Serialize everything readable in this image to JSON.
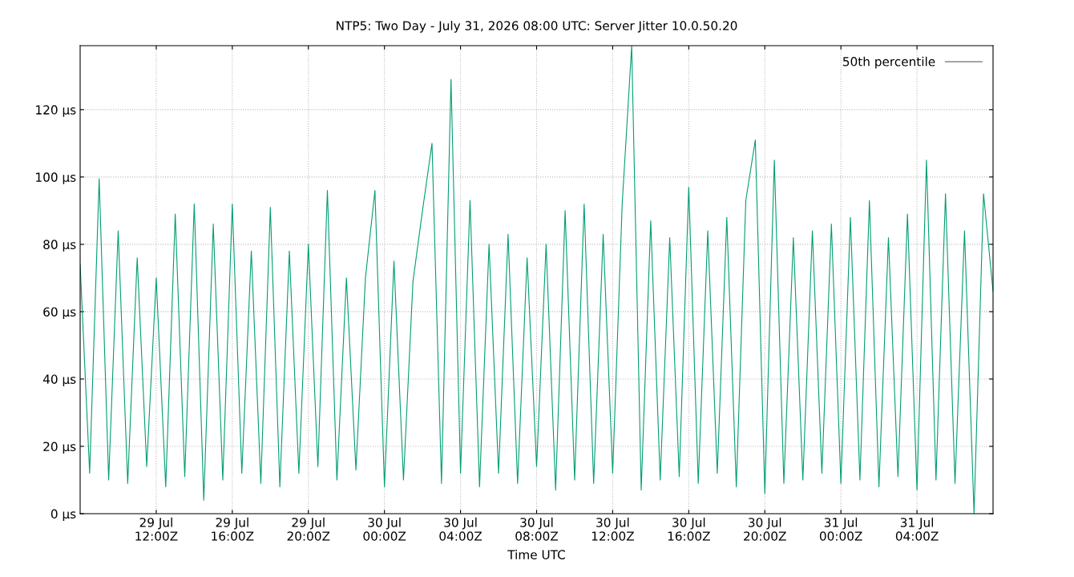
{
  "chart_data": {
    "type": "line",
    "title": "NTP5: Two Day - July 31, 2026 08:00 UTC: Server Jitter 10.0.50.20",
    "xlabel": "Time UTC",
    "x": [
      "2026-07-29T08:00",
      "2026-07-29T08:30",
      "2026-07-29T09:00",
      "2026-07-29T09:30",
      "2026-07-29T10:00",
      "2026-07-29T10:30",
      "2026-07-29T11:00",
      "2026-07-29T11:30",
      "2026-07-29T12:00",
      "2026-07-29T12:30",
      "2026-07-29T13:00",
      "2026-07-29T13:30",
      "2026-07-29T14:00",
      "2026-07-29T14:30",
      "2026-07-29T15:00",
      "2026-07-29T15:30",
      "2026-07-29T16:00",
      "2026-07-29T16:30",
      "2026-07-29T17:00",
      "2026-07-29T17:30",
      "2026-07-29T18:00",
      "2026-07-29T18:30",
      "2026-07-29T19:00",
      "2026-07-29T19:30",
      "2026-07-29T20:00",
      "2026-07-29T20:30",
      "2026-07-29T21:00",
      "2026-07-29T21:30",
      "2026-07-29T22:00",
      "2026-07-29T22:30",
      "2026-07-29T23:00",
      "2026-07-29T23:30",
      "2026-07-30T00:00",
      "2026-07-30T00:30",
      "2026-07-30T01:00",
      "2026-07-30T01:30",
      "2026-07-30T02:00",
      "2026-07-30T02:30",
      "2026-07-30T03:00",
      "2026-07-30T03:30",
      "2026-07-30T04:00",
      "2026-07-30T04:30",
      "2026-07-30T05:00",
      "2026-07-30T05:30",
      "2026-07-30T06:00",
      "2026-07-30T06:30",
      "2026-07-30T07:00",
      "2026-07-30T07:30",
      "2026-07-30T08:00",
      "2026-07-30T08:30",
      "2026-07-30T09:00",
      "2026-07-30T09:30",
      "2026-07-30T10:00",
      "2026-07-30T10:30",
      "2026-07-30T11:00",
      "2026-07-30T11:30",
      "2026-07-30T12:00",
      "2026-07-30T12:30",
      "2026-07-30T13:00",
      "2026-07-30T13:30",
      "2026-07-30T14:00",
      "2026-07-30T14:30",
      "2026-07-30T15:00",
      "2026-07-30T15:30",
      "2026-07-30T16:00",
      "2026-07-30T16:30",
      "2026-07-30T17:00",
      "2026-07-30T17:30",
      "2026-07-30T18:00",
      "2026-07-30T18:30",
      "2026-07-30T19:00",
      "2026-07-30T19:30",
      "2026-07-30T20:00",
      "2026-07-30T20:30",
      "2026-07-30T21:00",
      "2026-07-30T21:30",
      "2026-07-30T22:00",
      "2026-07-30T22:30",
      "2026-07-30T23:00",
      "2026-07-30T23:30",
      "2026-07-31T00:00",
      "2026-07-31T00:30",
      "2026-07-31T01:00",
      "2026-07-31T01:30",
      "2026-07-31T02:00",
      "2026-07-31T02:30",
      "2026-07-31T03:00",
      "2026-07-31T03:30",
      "2026-07-31T04:00",
      "2026-07-31T04:30",
      "2026-07-31T05:00",
      "2026-07-31T05:30",
      "2026-07-31T06:00",
      "2026-07-31T06:30",
      "2026-07-31T07:00",
      "2026-07-31T07:30",
      "2026-07-31T08:00"
    ],
    "series": [
      {
        "name": "50th percentile",
        "color": "#4d4d4d",
        "values": [
          null,
          null,
          null,
          null,
          null,
          null,
          null,
          null,
          null,
          null,
          null,
          null,
          null,
          null,
          null,
          null,
          null,
          null,
          null,
          null,
          null,
          null,
          null,
          null,
          null,
          null,
          null,
          null,
          null,
          null,
          null,
          null,
          null,
          null,
          null,
          null,
          null,
          null,
          null,
          null,
          null,
          null,
          null,
          null,
          null,
          null,
          null,
          null,
          null,
          null,
          null,
          null,
          null,
          null,
          null,
          null,
          null,
          null,
          null,
          null,
          null,
          null,
          null,
          null,
          null,
          null,
          null,
          null,
          null,
          null,
          null,
          null,
          null,
          null,
          null,
          null,
          null,
          null,
          null,
          null,
          null,
          null,
          null,
          null,
          null,
          null,
          null,
          null,
          null,
          null,
          null,
          null,
          null,
          null,
          null,
          null,
          null
        ]
      },
      {
        "color": "#009e73",
        "values": [
          74,
          12,
          99.5,
          10,
          84,
          9,
          76,
          14,
          70,
          8,
          89,
          11,
          92,
          4,
          86,
          10,
          92,
          12,
          78,
          9,
          91,
          8,
          78,
          12,
          80,
          14,
          96,
          10,
          70,
          13,
          70,
          96,
          8,
          75,
          10,
          69,
          90,
          110,
          9,
          129,
          12,
          93,
          8,
          80,
          12,
          83,
          9,
          76,
          14,
          80,
          7,
          90,
          10,
          92,
          9,
          83,
          12,
          92,
          139,
          7,
          87,
          10,
          82,
          11,
          97,
          9,
          84,
          12,
          88,
          8,
          93,
          111,
          6,
          105,
          9,
          82,
          10,
          84,
          12,
          86,
          9,
          88,
          10,
          93,
          8,
          82,
          11,
          89,
          7,
          105,
          10,
          95,
          9,
          84,
          0,
          95,
          66
        ]
      }
    ],
    "xlim": [
      "2026-07-29T08:00",
      "2026-07-31T08:00"
    ],
    "xticks": [
      {
        "value": "2026-07-29T12:00",
        "label": "29 Jul\n12:00Z"
      },
      {
        "value": "2026-07-29T16:00",
        "label": "29 Jul\n16:00Z"
      },
      {
        "value": "2026-07-29T20:00",
        "label": "29 Jul\n20:00Z"
      },
      {
        "value": "2026-07-30T00:00",
        "label": "30 Jul\n00:00Z"
      },
      {
        "value": "2026-07-30T04:00",
        "label": "30 Jul\n04:00Z"
      },
      {
        "value": "2026-07-30T08:00",
        "label": "30 Jul\n08:00Z"
      },
      {
        "value": "2026-07-30T12:00",
        "label": "30 Jul\n12:00Z"
      },
      {
        "value": "2026-07-30T16:00",
        "label": "30 Jul\n16:00Z"
      },
      {
        "value": "2026-07-30T20:00",
        "label": "30 Jul\n20:00Z"
      },
      {
        "value": "2026-07-31T00:00",
        "label": "31 Jul\n00:00Z"
      },
      {
        "value": "2026-07-31T04:00",
        "label": "31 Jul\n04:00Z"
      }
    ],
    "ylim": [
      0,
      139
    ],
    "yticks": [
      {
        "value": 0,
        "label": "0 µs"
      },
      {
        "value": 20,
        "label": "20 µs"
      },
      {
        "value": 40,
        "label": "40 µs"
      },
      {
        "value": 60,
        "label": "60 µs"
      },
      {
        "value": 80,
        "label": "80 µs"
      },
      {
        "value": 100,
        "label": "100 µs"
      },
      {
        "value": 120,
        "label": "120 µs"
      }
    ],
    "grid": true,
    "legend": "top right",
    "line_style": "solid"
  }
}
